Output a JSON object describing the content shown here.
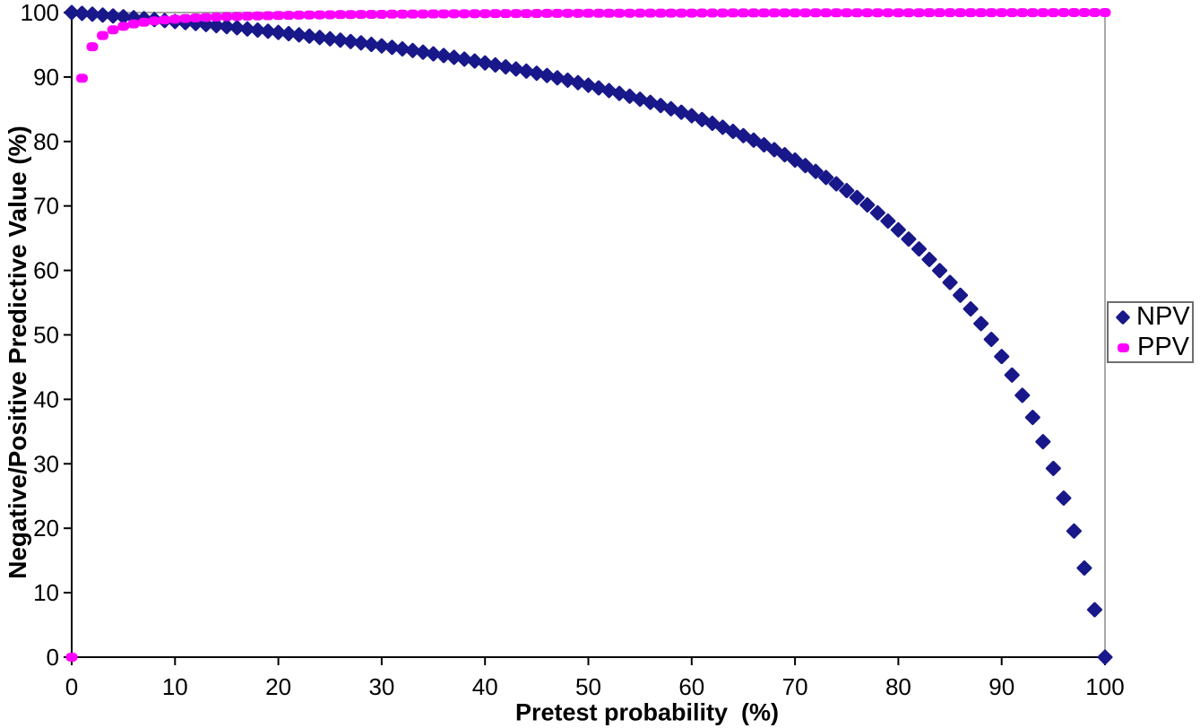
{
  "colors": {
    "background": "#FFFFFF",
    "axis": "#000000",
    "plot_border": "#A8A8A8",
    "text": "#000000",
    "npv": "#18188A",
    "ppv": "#FF00FF"
  },
  "legend": {
    "items": [
      {
        "label": "NPV",
        "marker": "diamond",
        "color": "#18188A"
      },
      {
        "label": "PPV",
        "marker": "rounded-square",
        "color": "#FF00FF"
      }
    ]
  },
  "chart_data": {
    "type": "scatter",
    "title": "",
    "xlabel": "Pretest probability  (%)",
    "ylabel": "Negative/Positive Predictive Value (%)",
    "xlim": [
      0,
      100
    ],
    "ylim": [
      0,
      100
    ],
    "xticks": [
      0,
      10,
      20,
      30,
      40,
      50,
      60,
      70,
      80,
      90,
      100
    ],
    "yticks": [
      0,
      10,
      20,
      30,
      40,
      50,
      60,
      70,
      80,
      90,
      100
    ],
    "grid": false,
    "legend_position": "right",
    "x": [
      0,
      1,
      2,
      3,
      4,
      5,
      6,
      7,
      8,
      9,
      10,
      11,
      12,
      13,
      14,
      15,
      16,
      17,
      18,
      19,
      20,
      21,
      22,
      23,
      24,
      25,
      26,
      27,
      28,
      29,
      30,
      31,
      32,
      33,
      34,
      35,
      36,
      37,
      38,
      39,
      40,
      41,
      42,
      43,
      44,
      45,
      46,
      47,
      48,
      49,
      50,
      51,
      52,
      53,
      54,
      55,
      56,
      57,
      58,
      59,
      60,
      61,
      62,
      63,
      64,
      65,
      66,
      67,
      68,
      69,
      70,
      71,
      72,
      73,
      74,
      75,
      76,
      77,
      78,
      79,
      80,
      81,
      82,
      83,
      84,
      85,
      86,
      87,
      88,
      89,
      90,
      91,
      92,
      93,
      94,
      95,
      96,
      97,
      98,
      99,
      100
    ],
    "series": [
      {
        "name": "NPV",
        "marker": "diamond",
        "color": "#18188A",
        "values": [
          100,
          99.87,
          99.74,
          99.61,
          99.47,
          99.34,
          99.2,
          99.05,
          98.91,
          98.76,
          98.61,
          98.45,
          98.3,
          98.14,
          97.97,
          97.81,
          97.64,
          97.46,
          97.28,
          97.1,
          96.92,
          96.73,
          96.54,
          96.34,
          96.14,
          95.93,
          95.72,
          95.51,
          95.29,
          95.06,
          94.83,
          94.6,
          94.36,
          94.11,
          93.85,
          93.59,
          93.33,
          93.05,
          92.77,
          92.48,
          92.19,
          91.88,
          91.57,
          91.25,
          90.92,
          90.58,
          90.23,
          89.87,
          89.5,
          89.12,
          88.72,
          88.31,
          87.9,
          87.46,
          87.02,
          86.55,
          86.07,
          85.58,
          85.07,
          84.54,
          83.99,
          83.41,
          82.82,
          82.21,
          81.57,
          80.9,
          80.21,
          79.48,
          78.73,
          77.94,
          77.12,
          76.26,
          75.36,
          74.42,
          73.43,
          72.39,
          71.3,
          70.15,
          68.93,
          67.65,
          66.29,
          64.85,
          63.33,
          61.7,
          59.97,
          58.13,
          56.15,
          54.03,
          51.75,
          49.3,
          46.64,
          43.76,
          40.62,
          37.19,
          33.43,
          29.28,
          24.68,
          19.57,
          13.83,
          7.36,
          0
        ]
      },
      {
        "name": "PPV",
        "marker": "rounded-square",
        "color": "#FF00FF",
        "values": [
          0,
          89.81,
          94.69,
          96.43,
          97.32,
          97.87,
          98.24,
          98.5,
          98.7,
          98.86,
          98.98,
          99.08,
          99.17,
          99.24,
          99.3,
          99.36,
          99.4,
          99.44,
          99.48,
          99.51,
          99.54,
          99.57,
          99.6,
          99.62,
          99.64,
          99.66,
          99.68,
          99.69,
          99.71,
          99.72,
          99.73,
          99.75,
          99.76,
          99.77,
          99.78,
          99.79,
          99.8,
          99.81,
          99.81,
          99.82,
          99.83,
          99.84,
          99.84,
          99.85,
          99.85,
          99.86,
          99.87,
          99.87,
          99.88,
          99.88,
          99.89,
          99.89,
          99.89,
          99.9,
          99.9,
          99.91,
          99.91,
          99.91,
          99.92,
          99.92,
          99.92,
          99.93,
          99.93,
          99.93,
          99.94,
          99.94,
          99.94,
          99.94,
          99.95,
          99.95,
          99.95,
          99.95,
          99.96,
          99.96,
          99.96,
          99.96,
          99.96,
          99.97,
          99.97,
          99.97,
          99.97,
          99.97,
          99.97,
          99.98,
          99.98,
          99.98,
          99.98,
          99.98,
          99.98,
          99.99,
          99.99,
          99.99,
          99.99,
          99.99,
          99.99,
          99.99,
          100,
          100,
          100,
          100,
          100
        ]
      }
    ]
  }
}
